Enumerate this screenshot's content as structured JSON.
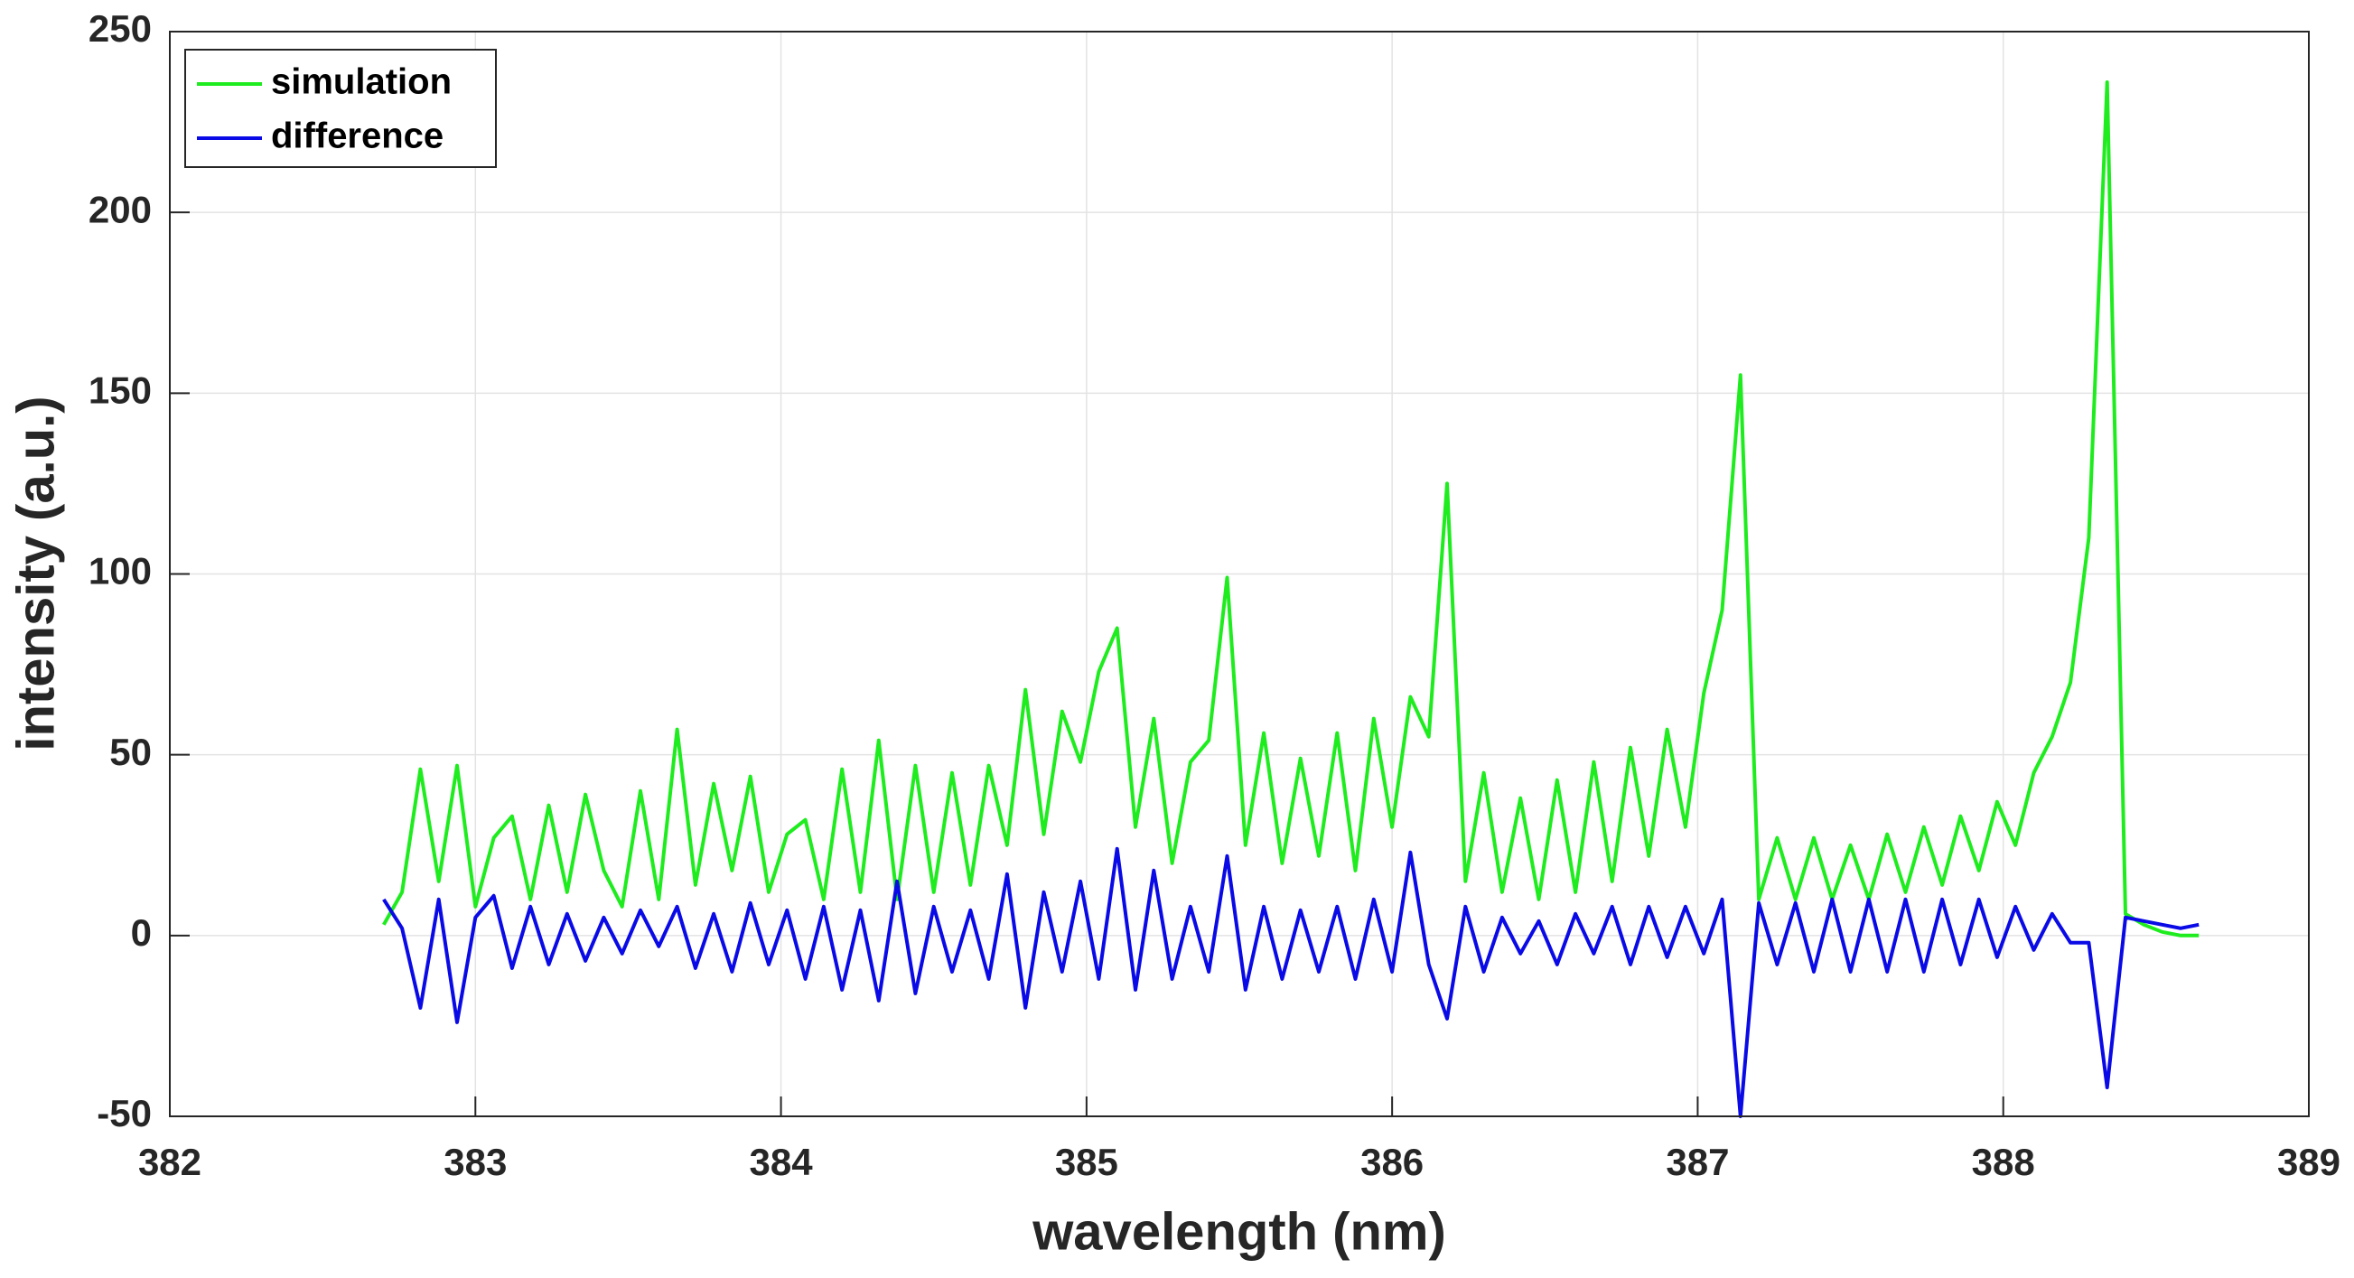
{
  "chart_data": {
    "type": "line",
    "x_label": "wavelength (nm)",
    "y_label": "intensity (a.u.)",
    "x": [
      382.7,
      382.76,
      382.82,
      382.88,
      382.94,
      383.0,
      383.06,
      383.12,
      383.18,
      383.24,
      383.3,
      383.36,
      383.42,
      383.48,
      383.54,
      383.6,
      383.66,
      383.72,
      383.78,
      383.84,
      383.9,
      383.96,
      384.02,
      384.08,
      384.14,
      384.2,
      384.26,
      384.32,
      384.38,
      384.44,
      384.5,
      384.56,
      384.62,
      384.68,
      384.74,
      384.8,
      384.86,
      384.92,
      384.98,
      385.04,
      385.1,
      385.16,
      385.22,
      385.28,
      385.34,
      385.4,
      385.46,
      385.52,
      385.58,
      385.64,
      385.7,
      385.76,
      385.82,
      385.88,
      385.94,
      386.0,
      386.06,
      386.12,
      386.18,
      386.24,
      386.3,
      386.36,
      386.42,
      386.48,
      386.54,
      386.6,
      386.66,
      386.72,
      386.78,
      386.84,
      386.9,
      386.96,
      387.02,
      387.08,
      387.14,
      387.2,
      387.26,
      387.32,
      387.38,
      387.44,
      387.5,
      387.56,
      387.62,
      387.68,
      387.74,
      387.8,
      387.86,
      387.92,
      387.98,
      388.04,
      388.1,
      388.16,
      388.22,
      388.28,
      388.34,
      388.4,
      388.46,
      388.52,
      388.58,
      388.64
    ],
    "series": [
      {
        "name": "simulation",
        "color": "#1eec1e",
        "values": [
          3,
          12,
          46,
          15,
          47,
          8,
          27,
          33,
          10,
          36,
          12,
          39,
          18,
          8,
          40,
          10,
          57,
          14,
          42,
          18,
          44,
          12,
          28,
          32,
          10,
          46,
          12,
          54,
          10,
          47,
          12,
          45,
          14,
          47,
          25,
          68,
          28,
          62,
          48,
          73,
          85,
          30,
          60,
          20,
          48,
          54,
          99,
          25,
          56,
          20,
          49,
          22,
          56,
          18,
          60,
          30,
          66,
          55,
          125,
          15,
          45,
          12,
          38,
          10,
          43,
          12,
          48,
          15,
          52,
          22,
          57,
          30,
          67,
          90,
          155,
          10,
          27,
          10,
          27,
          10,
          25,
          10,
          28,
          12,
          30,
          14,
          33,
          18,
          37,
          25,
          45,
          55,
          70,
          110,
          236,
          6,
          3,
          1,
          0,
          0
        ]
      },
      {
        "name": "difference",
        "color": "#0a0ae6",
        "values": [
          10,
          2,
          -20,
          10,
          -24,
          5,
          11,
          -9,
          8,
          -8,
          6,
          -7,
          5,
          -5,
          7,
          -3,
          8,
          -9,
          6,
          -10,
          9,
          -8,
          7,
          -12,
          8,
          -15,
          7,
          -18,
          15,
          -16,
          8,
          -10,
          7,
          -12,
          17,
          -20,
          12,
          -10,
          15,
          -12,
          24,
          -15,
          18,
          -12,
          8,
          -10,
          22,
          -15,
          8,
          -12,
          7,
          -10,
          8,
          -12,
          10,
          -10,
          23,
          -8,
          -23,
          8,
          -10,
          5,
          -5,
          4,
          -8,
          6,
          -5,
          8,
          -8,
          8,
          -6,
          8,
          -5,
          10,
          -50,
          9,
          -8,
          9,
          -10,
          10,
          -10,
          10,
          -10,
          10,
          -10,
          10,
          -8,
          10,
          -6,
          8,
          -4,
          6,
          -2,
          -2,
          -42,
          5,
          4,
          3,
          2,
          3
        ]
      }
    ],
    "xlim": [
      382,
      389
    ],
    "xticks": [
      382,
      383,
      384,
      385,
      386,
      387,
      388,
      389
    ],
    "ylim": [
      -50,
      250
    ],
    "yticks": [
      -50,
      0,
      50,
      100,
      150,
      200,
      250
    ],
    "grid": true,
    "legend": "upper-left"
  }
}
